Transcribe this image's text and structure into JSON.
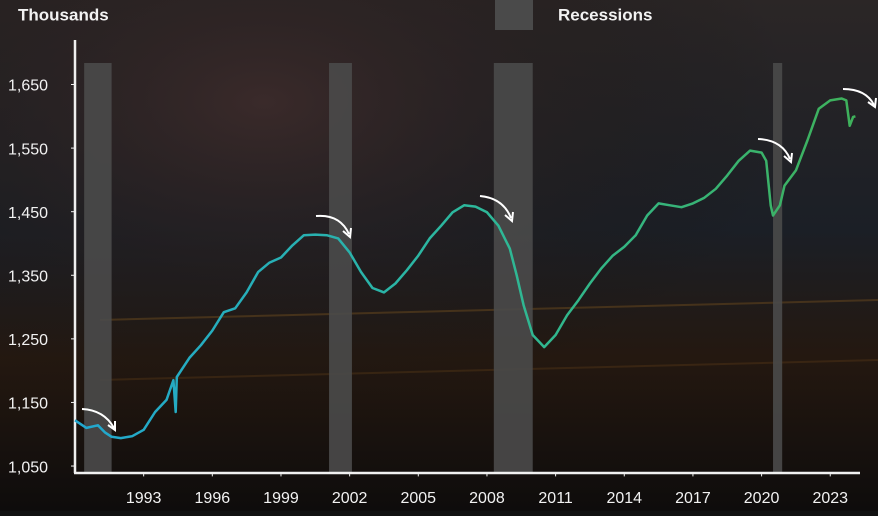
{
  "chart_data": {
    "type": "line",
    "y_label": "Thousands",
    "legend_label": "Recessions",
    "legend_color": "#4a4a4a",
    "recessions": [
      [
        1990.4,
        1991.6
      ],
      [
        2001.1,
        2002.1
      ],
      [
        2008.3,
        2010.0
      ],
      [
        2020.5,
        2020.9
      ]
    ],
    "xlim": [
      1990,
      2024.3
    ],
    "xticks": [
      1993,
      1996,
      1999,
      2002,
      2005,
      2008,
      2011,
      2014,
      2017,
      2020,
      2023
    ],
    "ylim": [
      1040,
      1720
    ],
    "yticks": [
      {
        "value": 1050,
        "label": "1,050"
      },
      {
        "value": 1150,
        "label": "1,150"
      },
      {
        "value": 1250,
        "label": "1,250"
      },
      {
        "value": 1350,
        "label": "1,350"
      },
      {
        "value": 1450,
        "label": "1,450"
      },
      {
        "value": 1550,
        "label": "1,550"
      },
      {
        "value": 1650,
        "label": "1,650"
      }
    ],
    "series": [
      {
        "gradient": [
          "#22a7d0",
          "#2db89c",
          "#3fb15a"
        ],
        "x": [
          1990.0,
          1990.5,
          1991.0,
          1991.3,
          1991.6,
          1992.0,
          1992.5,
          1993.0,
          1993.5,
          1994.0,
          1994.3,
          1994.4,
          1994.45,
          1995.0,
          1995.5,
          1996.0,
          1996.5,
          1997.0,
          1997.5,
          1998.0,
          1998.5,
          1999.0,
          1999.5,
          2000.0,
          2000.5,
          2001.0,
          2001.5,
          2002.0,
          2002.5,
          2003.0,
          2003.5,
          2004.0,
          2004.5,
          2005.0,
          2005.5,
          2006.0,
          2006.5,
          2007.0,
          2007.5,
          2008.0,
          2008.5,
          2009.0,
          2009.3,
          2009.6,
          2010.0,
          2010.5,
          2011.0,
          2011.5,
          2012.0,
          2012.5,
          2013.0,
          2013.5,
          2014.0,
          2014.5,
          2015.0,
          2015.5,
          2016.0,
          2016.5,
          2017.0,
          2017.5,
          2018.0,
          2018.5,
          2019.0,
          2019.5,
          2020.0,
          2020.2,
          2020.4,
          2020.5,
          2020.8,
          2021.0,
          2021.5,
          2022.0,
          2022.5,
          2023.0,
          2023.5,
          2023.7,
          2023.85,
          2024.0,
          2024.1
        ],
        "values": [
          1122,
          1110,
          1114,
          1103,
          1096,
          1094,
          1097,
          1107,
          1135,
          1154,
          1185,
          1135,
          1190,
          1220,
          1240,
          1263,
          1292,
          1298,
          1323,
          1355,
          1370,
          1378,
          1397,
          1413,
          1414,
          1413,
          1408,
          1386,
          1355,
          1330,
          1323,
          1337,
          1358,
          1381,
          1408,
          1428,
          1449,
          1460,
          1458,
          1449,
          1428,
          1392,
          1350,
          1303,
          1256,
          1237,
          1256,
          1287,
          1311,
          1337,
          1361,
          1381,
          1395,
          1413,
          1444,
          1463,
          1460,
          1457,
          1463,
          1472,
          1486,
          1507,
          1530,
          1546,
          1543,
          1530,
          1460,
          1444,
          1460,
          1491,
          1515,
          1562,
          1612,
          1625,
          1628,
          1625,
          1585,
          1599,
          1600
        ]
      }
    ]
  }
}
